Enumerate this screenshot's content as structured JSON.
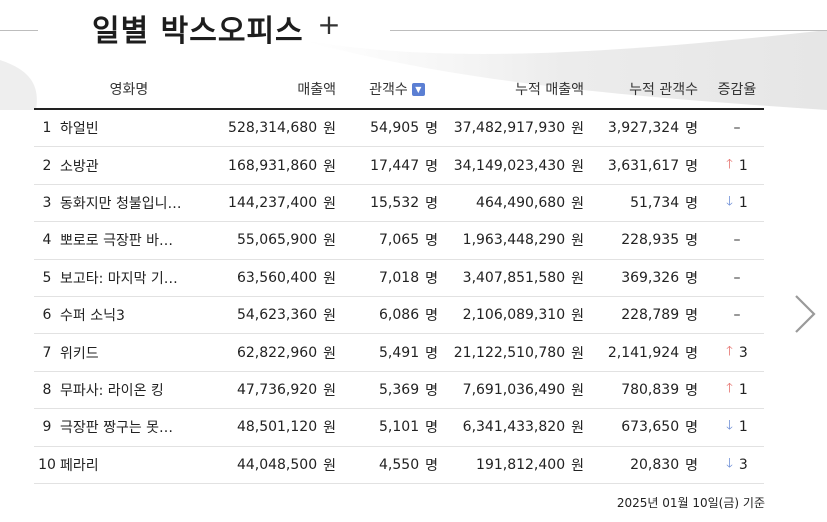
{
  "header": {
    "title": "일별 박스오피스",
    "add_label": "+"
  },
  "table": {
    "columns": {
      "title": "영화명",
      "sales": "매출액",
      "audience": "관객수",
      "acc_sales": "누적 매출액",
      "acc_audience": "누적 관객수",
      "change": "증감율"
    },
    "sort_icon": "chevron-down",
    "rows": [
      {
        "rank": "1",
        "name": "하얼빈",
        "sales": "528,314,680",
        "sales_unit": "원",
        "audience": "54,905",
        "audience_unit": "명",
        "acc_sales": "37,482,917,930",
        "acc_sales_unit": "원",
        "acc_audience": "3,927,324",
        "acc_audience_unit": "명",
        "change_dir": "none",
        "change_value": "–"
      },
      {
        "rank": "2",
        "name": "소방관",
        "sales": "168,931,860",
        "sales_unit": "원",
        "audience": "17,447",
        "audience_unit": "명",
        "acc_sales": "34,149,023,430",
        "acc_sales_unit": "원",
        "acc_audience": "3,631,617",
        "acc_audience_unit": "명",
        "change_dir": "up",
        "change_value": "1"
      },
      {
        "rank": "3",
        "name": "동화지만 청불입니…",
        "sales": "144,237,400",
        "sales_unit": "원",
        "audience": "15,532",
        "audience_unit": "명",
        "acc_sales": "464,490,680",
        "acc_sales_unit": "원",
        "acc_audience": "51,734",
        "acc_audience_unit": "명",
        "change_dir": "down",
        "change_value": "1"
      },
      {
        "rank": "4",
        "name": "뽀로로 극장판 바…",
        "sales": "55,065,900",
        "sales_unit": "원",
        "audience": "7,065",
        "audience_unit": "명",
        "acc_sales": "1,963,448,290",
        "acc_sales_unit": "원",
        "acc_audience": "228,935",
        "acc_audience_unit": "명",
        "change_dir": "none",
        "change_value": "–"
      },
      {
        "rank": "5",
        "name": "보고타: 마지막 기…",
        "sales": "63,560,400",
        "sales_unit": "원",
        "audience": "7,018",
        "audience_unit": "명",
        "acc_sales": "3,407,851,580",
        "acc_sales_unit": "원",
        "acc_audience": "369,326",
        "acc_audience_unit": "명",
        "change_dir": "none",
        "change_value": "–"
      },
      {
        "rank": "6",
        "name": "수퍼 소닉3",
        "sales": "54,623,360",
        "sales_unit": "원",
        "audience": "6,086",
        "audience_unit": "명",
        "acc_sales": "2,106,089,310",
        "acc_sales_unit": "원",
        "acc_audience": "228,789",
        "acc_audience_unit": "명",
        "change_dir": "none",
        "change_value": "–"
      },
      {
        "rank": "7",
        "name": "위키드",
        "sales": "62,822,960",
        "sales_unit": "원",
        "audience": "5,491",
        "audience_unit": "명",
        "acc_sales": "21,122,510,780",
        "acc_sales_unit": "원",
        "acc_audience": "2,141,924",
        "acc_audience_unit": "명",
        "change_dir": "up",
        "change_value": "3"
      },
      {
        "rank": "8",
        "name": "무파사: 라이온 킹",
        "sales": "47,736,920",
        "sales_unit": "원",
        "audience": "5,369",
        "audience_unit": "명",
        "acc_sales": "7,691,036,490",
        "acc_sales_unit": "원",
        "acc_audience": "780,839",
        "acc_audience_unit": "명",
        "change_dir": "up",
        "change_value": "1"
      },
      {
        "rank": "9",
        "name": "극장판 짱구는 못…",
        "sales": "48,501,120",
        "sales_unit": "원",
        "audience": "5,101",
        "audience_unit": "명",
        "acc_sales": "6,341,433,820",
        "acc_sales_unit": "원",
        "acc_audience": "673,650",
        "acc_audience_unit": "명",
        "change_dir": "down",
        "change_value": "1"
      },
      {
        "rank": "10",
        "name": "페라리",
        "sales": "44,048,500",
        "sales_unit": "원",
        "audience": "4,550",
        "audience_unit": "명",
        "acc_sales": "191,812,400",
        "acc_sales_unit": "원",
        "acc_audience": "20,830",
        "acc_audience_unit": "명",
        "change_dir": "down",
        "change_value": "3"
      }
    ]
  },
  "footer": {
    "date": "2025년 01월 10일(금) 기준"
  },
  "nav": {
    "next_icon": "chevron-right"
  },
  "colors": {
    "up": "#e5706c",
    "down": "#6f8fd6",
    "sort_icon_bg": "#5b7fd3"
  }
}
